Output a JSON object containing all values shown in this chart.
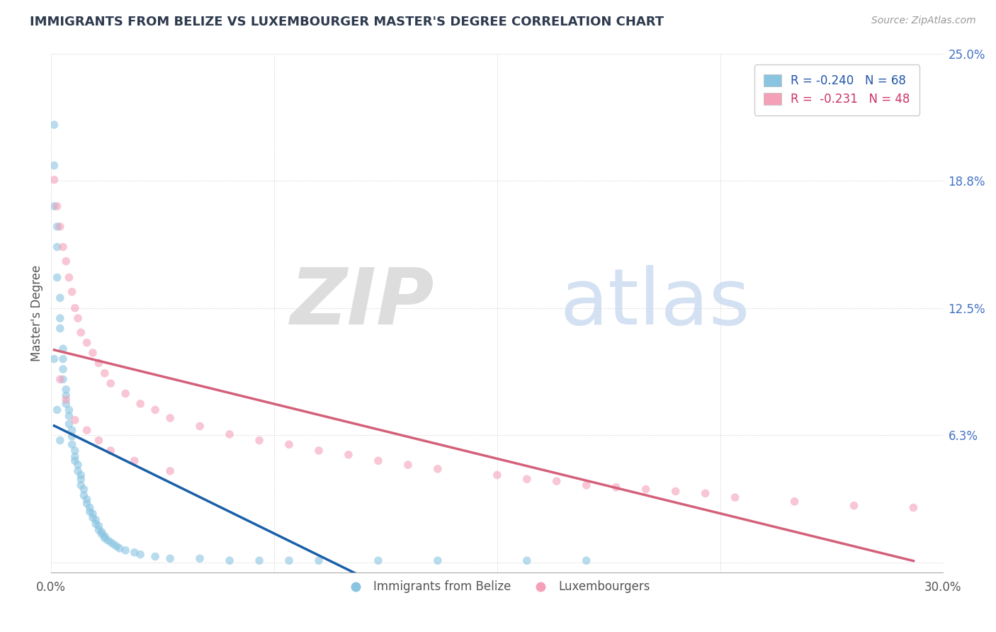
{
  "title": "IMMIGRANTS FROM BELIZE VS LUXEMBOURGER MASTER'S DEGREE CORRELATION CHART",
  "source_text": "Source: ZipAtlas.com",
  "ylabel": "Master's Degree",
  "xlim": [
    0.0,
    0.3
  ],
  "ylim": [
    -0.005,
    0.25
  ],
  "belize_color": "#89c4e1",
  "luxembourger_color": "#f4a0b8",
  "belize_trend_color": "#1a5fa8",
  "luxembourger_trend_color": "#d4607a",
  "background_color": "#ffffff",
  "title_fontsize": 13,
  "belize_x": [
    0.001,
    0.001,
    0.001,
    0.002,
    0.002,
    0.002,
    0.003,
    0.003,
    0.003,
    0.004,
    0.004,
    0.004,
    0.004,
    0.005,
    0.005,
    0.005,
    0.006,
    0.006,
    0.006,
    0.007,
    0.007,
    0.007,
    0.008,
    0.008,
    0.008,
    0.009,
    0.009,
    0.01,
    0.01,
    0.01,
    0.011,
    0.011,
    0.012,
    0.012,
    0.013,
    0.013,
    0.014,
    0.014,
    0.015,
    0.015,
    0.016,
    0.016,
    0.017,
    0.017,
    0.018,
    0.018,
    0.019,
    0.02,
    0.021,
    0.022,
    0.023,
    0.025,
    0.028,
    0.03,
    0.035,
    0.04,
    0.05,
    0.06,
    0.07,
    0.08,
    0.09,
    0.11,
    0.13,
    0.16,
    0.18,
    0.001,
    0.002,
    0.003
  ],
  "belize_y": [
    0.215,
    0.195,
    0.175,
    0.165,
    0.155,
    0.14,
    0.13,
    0.12,
    0.115,
    0.105,
    0.1,
    0.095,
    0.09,
    0.085,
    0.082,
    0.078,
    0.075,
    0.072,
    0.068,
    0.065,
    0.062,
    0.058,
    0.055,
    0.052,
    0.05,
    0.048,
    0.045,
    0.043,
    0.041,
    0.038,
    0.036,
    0.033,
    0.031,
    0.029,
    0.027,
    0.025,
    0.024,
    0.022,
    0.021,
    0.019,
    0.018,
    0.016,
    0.015,
    0.014,
    0.013,
    0.012,
    0.011,
    0.01,
    0.009,
    0.008,
    0.007,
    0.006,
    0.005,
    0.004,
    0.003,
    0.002,
    0.002,
    0.001,
    0.001,
    0.001,
    0.001,
    0.001,
    0.001,
    0.001,
    0.001,
    0.1,
    0.075,
    0.06
  ],
  "luxembourger_x": [
    0.001,
    0.002,
    0.003,
    0.004,
    0.005,
    0.006,
    0.007,
    0.008,
    0.009,
    0.01,
    0.012,
    0.014,
    0.016,
    0.018,
    0.02,
    0.025,
    0.03,
    0.035,
    0.04,
    0.05,
    0.06,
    0.07,
    0.08,
    0.09,
    0.1,
    0.11,
    0.12,
    0.13,
    0.15,
    0.16,
    0.17,
    0.18,
    0.19,
    0.2,
    0.21,
    0.22,
    0.23,
    0.25,
    0.27,
    0.29,
    0.003,
    0.005,
    0.008,
    0.012,
    0.016,
    0.02,
    0.028,
    0.04
  ],
  "luxembourger_y": [
    0.188,
    0.175,
    0.165,
    0.155,
    0.148,
    0.14,
    0.133,
    0.125,
    0.12,
    0.113,
    0.108,
    0.103,
    0.098,
    0.093,
    0.088,
    0.083,
    0.078,
    0.075,
    0.071,
    0.067,
    0.063,
    0.06,
    0.058,
    0.055,
    0.053,
    0.05,
    0.048,
    0.046,
    0.043,
    0.041,
    0.04,
    0.038,
    0.037,
    0.036,
    0.035,
    0.034,
    0.032,
    0.03,
    0.028,
    0.027,
    0.09,
    0.08,
    0.07,
    0.065,
    0.06,
    0.055,
    0.05,
    0.045
  ]
}
